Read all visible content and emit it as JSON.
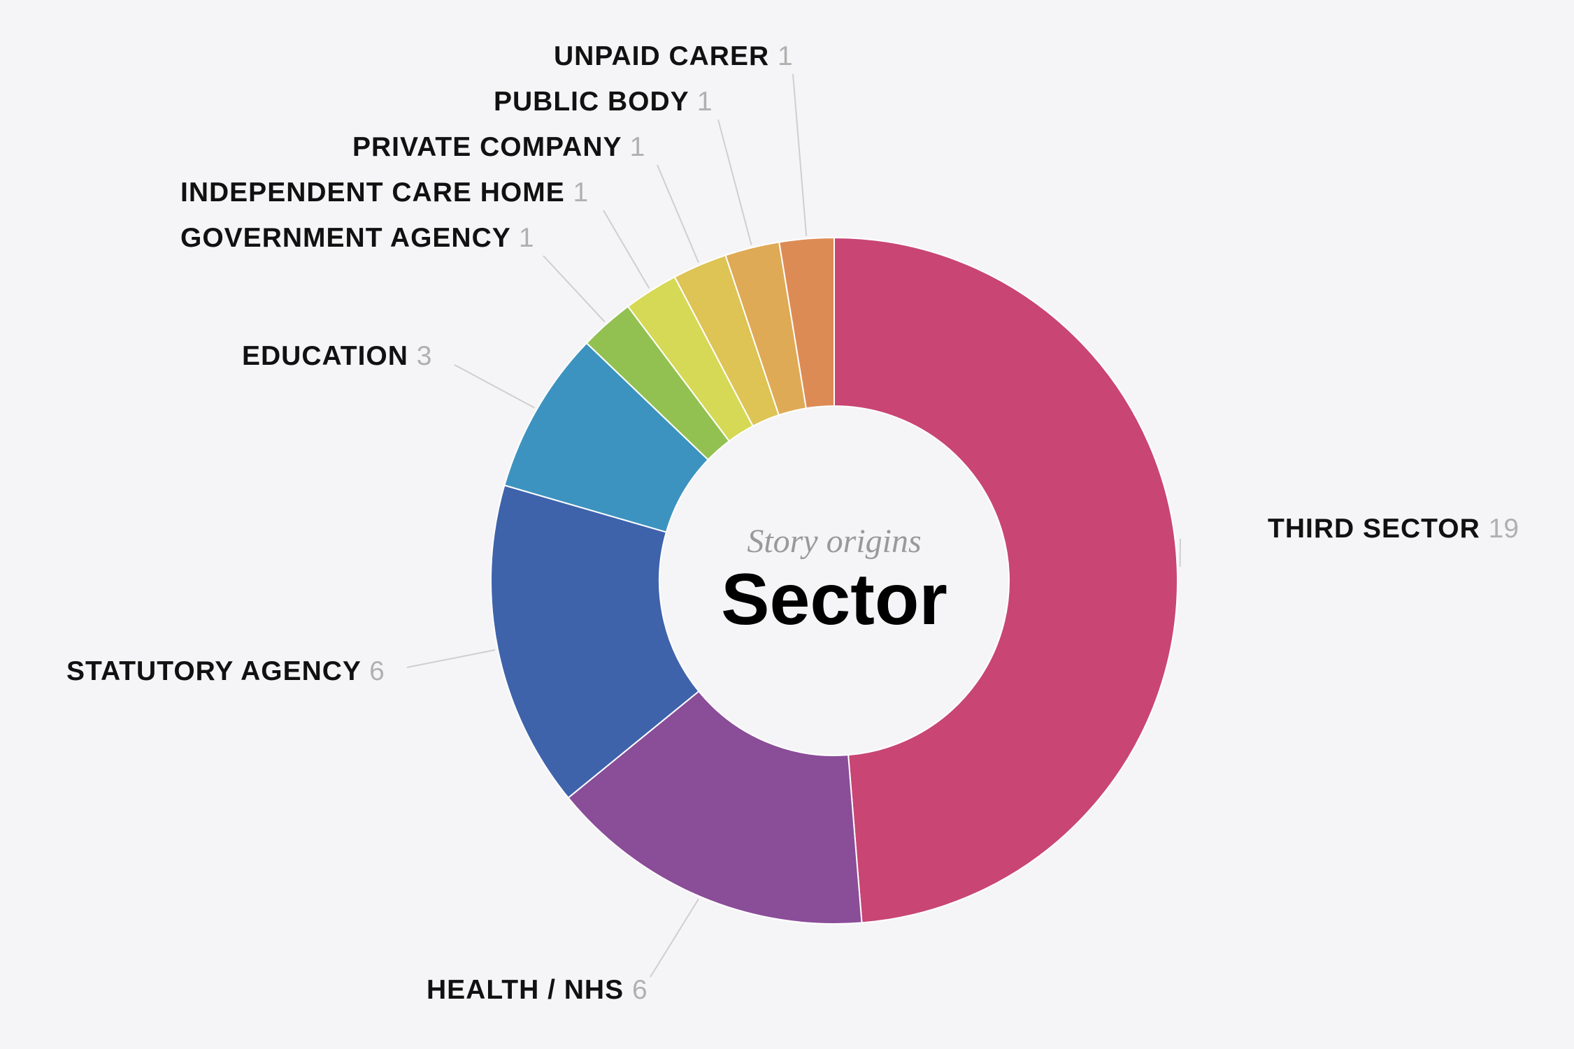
{
  "chart_data": {
    "type": "pie",
    "subtitle": "Story origins",
    "title": "Sector",
    "slices": [
      {
        "label": "THIRD SECTOR",
        "value": 19,
        "color": "#c84574"
      },
      {
        "label": "HEALTH / NHS",
        "value": 6,
        "color": "#8a4d98"
      },
      {
        "label": "STATUTORY AGENCY",
        "value": 6,
        "color": "#3e63ab"
      },
      {
        "label": "EDUCATION",
        "value": 3,
        "color": "#3d93c0"
      },
      {
        "label": "GOVERNMENT AGENCY",
        "value": 1,
        "color": "#92c152"
      },
      {
        "label": "INDEPENDENT CARE HOME",
        "value": 1,
        "color": "#d6d955"
      },
      {
        "label": "PRIVATE COMPANY",
        "value": 1,
        "color": "#dec355"
      },
      {
        "label": "PUBLIC BODY",
        "value": 1,
        "color": "#dfaa55"
      },
      {
        "label": "UNPAID CARER",
        "value": 1,
        "color": "#dd8b55"
      }
    ]
  }
}
